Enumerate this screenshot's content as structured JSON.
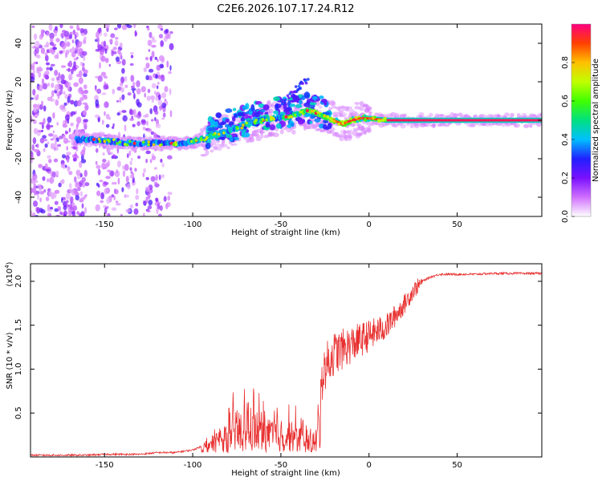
{
  "title": "C2E6.2026.107.17.24.R12",
  "chart_data": [
    {
      "type": "heatmap",
      "xlabel": "Height of straight line (km)",
      "ylabel": "Frequency (Hz)",
      "xlim": [
        -192,
        98
      ],
      "ylim": [
        -50,
        50
      ],
      "xticks": [
        -150,
        -100,
        -50,
        0,
        50
      ],
      "xtick_labels": [
        "-150",
        "-100",
        "-50",
        "0",
        "50"
      ],
      "yticks": [
        -40,
        -20,
        0,
        20,
        40
      ],
      "ytick_labels": [
        "-40",
        "-20",
        "0",
        "20",
        "40"
      ],
      "colorbar": {
        "label": "Normalized spectral amplitude",
        "range": [
          0,
          1
        ],
        "ticks": [
          0,
          0.2,
          0.4,
          0.6,
          0.8
        ],
        "tick_labels": [
          "0.0",
          "0.2",
          "0.4",
          "0.6",
          "0.8"
        ],
        "colors": [
          "#ffffff",
          "#d070ff",
          "#7a10ff",
          "#2020ff",
          "#00c0ff",
          "#00e080",
          "#40ff00",
          "#c0ff00",
          "#ffc000",
          "#ff4000",
          "#ff0080"
        ]
      },
      "ridge": {
        "x": [
          -165,
          -155,
          -145,
          -135,
          -125,
          -115,
          -105,
          -95,
          -85,
          -75,
          -65,
          -55,
          -45,
          -35,
          -28,
          -20,
          -15,
          -10,
          -5,
          0,
          10,
          98
        ],
        "y": [
          -10,
          -10,
          -11,
          -12,
          -12,
          -12,
          -12,
          -10,
          -7,
          -4,
          -1,
          1,
          2,
          5,
          3,
          0,
          -2,
          0,
          1,
          1,
          0,
          0
        ]
      }
    },
    {
      "type": "line",
      "xlabel": "Height of straight line (km)",
      "ylabel": "SNR (10 * v/v)",
      "y_multiplier_label": "(x10",
      "y_multiplier_exponent": "4",
      "xlim": [
        -192,
        98
      ],
      "ylim": [
        0,
        2.2
      ],
      "xticks": [
        -150,
        -100,
        -50,
        0,
        50
      ],
      "xtick_labels": [
        "-150",
        "-100",
        "-50",
        "0",
        "50"
      ],
      "yticks": [
        0.5,
        1.0,
        1.5,
        2.0
      ],
      "ytick_labels": [
        "0.5",
        "1.0",
        "1.5",
        "2.0"
      ],
      "color": "#e83030",
      "series": [
        {
          "name": "SNR",
          "envelope_x": [
            -192,
            -160,
            -150,
            -130,
            -120,
            -110,
            -100,
            -95,
            -90,
            -80,
            -70,
            -60,
            -50,
            -40,
            -30,
            -27,
            -25,
            -20,
            -10,
            0,
            10,
            20,
            25,
            30,
            35,
            40,
            50,
            60,
            70,
            80,
            90,
            98
          ],
          "envelope_y": [
            0.02,
            0.02,
            0.03,
            0.03,
            0.05,
            0.05,
            0.08,
            0.12,
            0.2,
            0.4,
            0.5,
            0.45,
            0.4,
            0.35,
            0.2,
            0.9,
            1.05,
            1.2,
            1.3,
            1.4,
            1.5,
            1.75,
            1.9,
            2.0,
            2.05,
            2.08,
            2.08,
            2.08,
            2.09,
            2.09,
            2.09,
            2.09
          ]
        }
      ]
    }
  ]
}
